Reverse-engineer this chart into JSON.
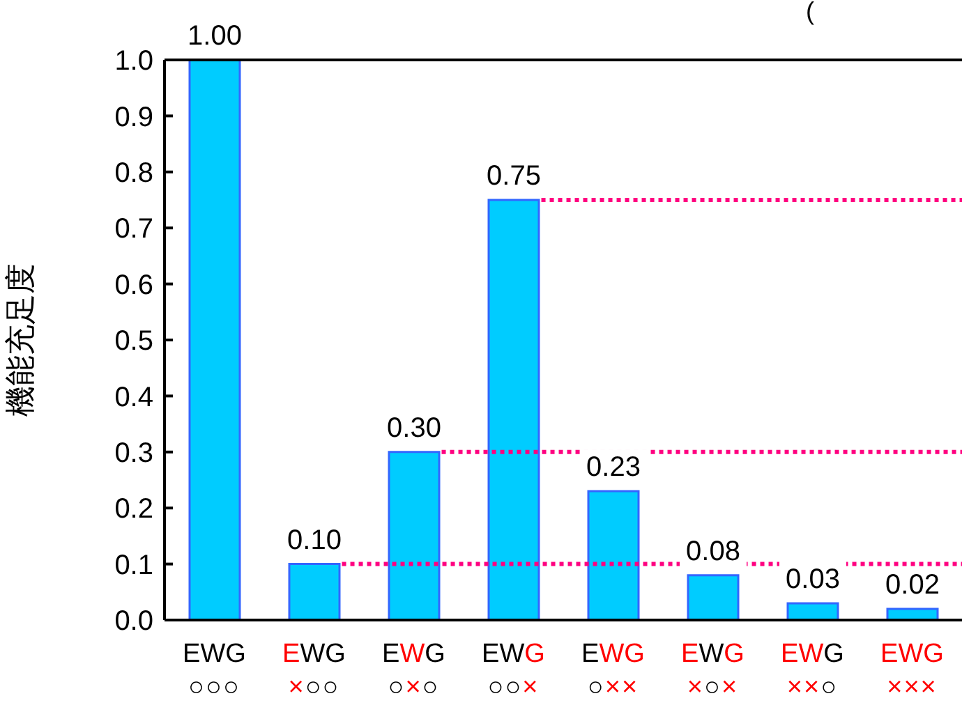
{
  "chart_data": {
    "type": "bar",
    "title": "(",
    "ylabel": "機能充足度",
    "categories": [
      "EWG\n○○○",
      "EWG\n×○○",
      "EWG\n○×○",
      "EWG\n○○×",
      "EWG\n○××",
      "EWG\n×○×",
      "EWG\n××○",
      "EWG\n×××"
    ],
    "values": [
      1,
      0.1,
      0.3,
      0.75,
      0.23,
      0.08,
      0.03,
      0.02
    ],
    "value_labels": [
      "1.00",
      "0.10",
      "0.30",
      "0.75",
      "0.23",
      "0.08",
      "0.03",
      "0.02"
    ],
    "color": "#00ccff",
    "ylim": [
      0,
      1
    ],
    "yticks": [
      {
        "value": 0,
        "label": "0.0"
      },
      {
        "value": 0.1,
        "label": "0.1"
      },
      {
        "value": 0.2,
        "label": "0.2"
      },
      {
        "value": 0.3,
        "label": "0.3"
      },
      {
        "value": 0.4,
        "label": "0.4"
      },
      {
        "value": 0.5,
        "label": "0.5"
      },
      {
        "value": 0.6,
        "label": "0.6"
      },
      {
        "value": 0.7,
        "label": "0.7"
      },
      {
        "value": 0.8,
        "label": "0.8"
      },
      {
        "value": 0.9,
        "label": "0.9"
      },
      {
        "value": 1,
        "label": "1.0"
      }
    ],
    "ref_lines": [
      {
        "axis": "y",
        "value": 0.75,
        "color": "#ff0080",
        "line_style": "dotted"
      },
      {
        "axis": "y",
        "value": 0.3,
        "color": "#ff0080",
        "line_style": "dotted"
      },
      {
        "axis": "y",
        "value": 0.1,
        "color": "#ff0080",
        "line_style": "dotted"
      }
    ],
    "grid": false,
    "legend": false
  }
}
